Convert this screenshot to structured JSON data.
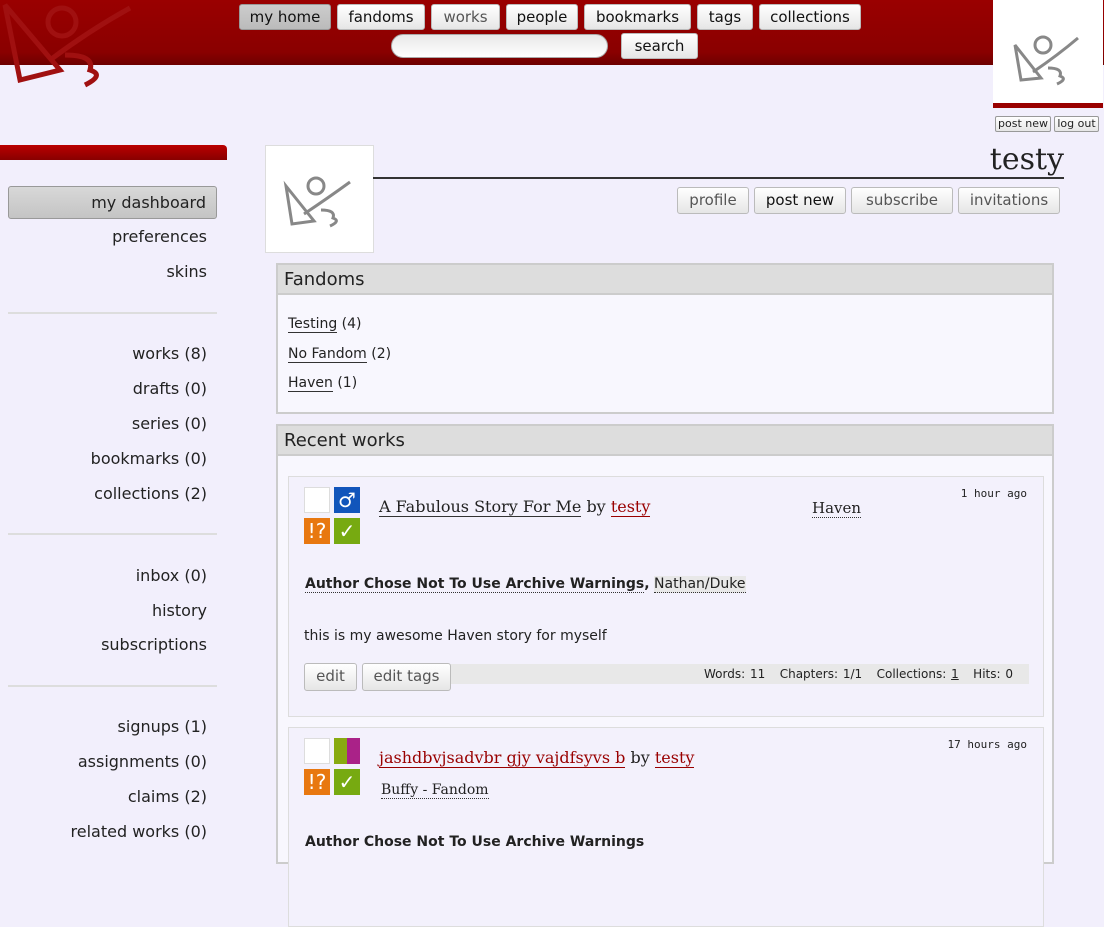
{
  "header": {
    "nav": [
      "my home",
      "fandoms",
      "works",
      "people",
      "bookmarks",
      "tags",
      "collections"
    ],
    "search_placeholder": "",
    "search_label": "search"
  },
  "user": {
    "post_new": "post new",
    "log_out": "log out",
    "name": "testy"
  },
  "sidebar": {
    "dashboard": "my dashboard",
    "group1": [
      "preferences",
      "skins"
    ],
    "group2": [
      "works (8)",
      "drafts (0)",
      "series (0)",
      "bookmarks (0)",
      "collections (2)"
    ],
    "group3": [
      "inbox (0)",
      "history",
      "subscriptions"
    ],
    "group4": [
      "signups (1)",
      "assignments (0)",
      "claims (2)",
      "related works (0)"
    ]
  },
  "actions": [
    "profile",
    "post new",
    "subscribe",
    "invitations"
  ],
  "fandoms": {
    "heading": "Fandoms",
    "items": [
      {
        "name": "Testing",
        "count": "(4)"
      },
      {
        "name": "No Fandom",
        "count": "(2)"
      },
      {
        "name": "Haven",
        "count": "(1)"
      }
    ]
  },
  "recent": {
    "heading": "Recent works",
    "works": [
      {
        "title": "A Fabulous Story For Me",
        "by": "by",
        "author": "testy",
        "fandom": "Haven",
        "date": "1 hour ago",
        "warning": "Author Chose Not To Use Archive Warnings",
        "relationship": "Nathan/Duke",
        "summary": "this is my awesome Haven story for myself",
        "edit": "edit",
        "edit_tags": "edit tags",
        "stats": {
          "words_label": "Words:",
          "words": "11",
          "chapters_label": "Chapters:",
          "chapters": "1/1",
          "collections_label": "Collections:",
          "collections": "1",
          "hits_label": "Hits:",
          "hits": "0"
        }
      },
      {
        "title": "jashdbvjsadvbr gjy vajdfsyvs b",
        "by": "by",
        "author": "testy",
        "fandom": "Buffy - Fandom",
        "date": "17 hours ago",
        "warning": "Author Chose Not To Use Archive Warnings"
      }
    ]
  },
  "colors": {
    "brand": "#990000",
    "background": "#f2effc"
  }
}
